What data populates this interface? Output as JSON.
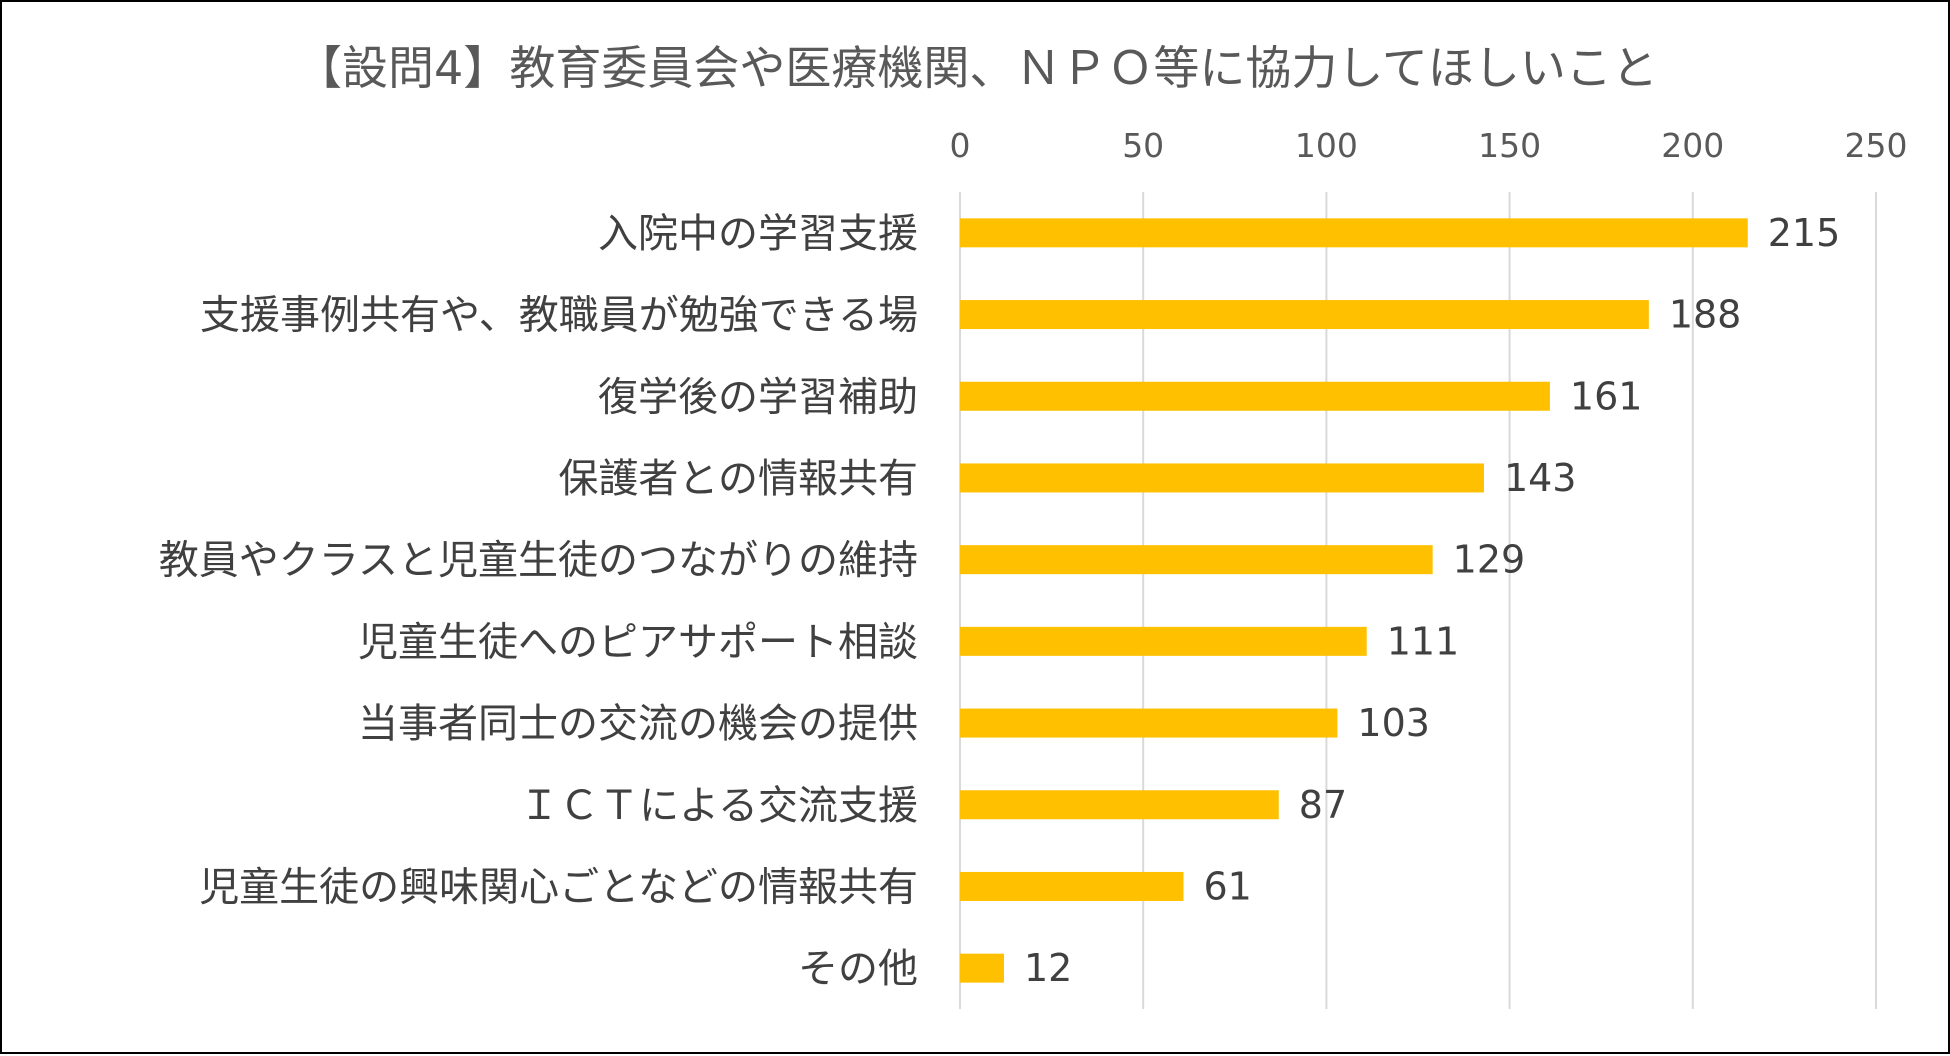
{
  "chart_data": {
    "type": "bar",
    "orientation": "horizontal",
    "title": "【設問4】教育委員会や医療機関、ＮＰＯ等に協力してほしいこと",
    "categories": [
      "入院中の学習支援",
      "支援事例共有や、教職員が勉強できる場",
      "復学後の学習補助",
      "保護者との情報共有",
      "教員やクラスと児童生徒のつながりの維持",
      "児童生徒へのピアサポート相談",
      "当事者同士の交流の機会の提供",
      "ＩＣＴによる交流支援",
      "児童生徒の興味関心ごとなどの情報共有",
      "その他"
    ],
    "values": [
      215,
      188,
      161,
      143,
      129,
      111,
      103,
      87,
      61,
      12
    ],
    "xlim": [
      0,
      250
    ],
    "xticks": [
      0,
      50,
      100,
      150,
      200,
      250
    ],
    "xaxis_position": "top",
    "grid": true,
    "data_labels": true,
    "bar_color": "#FFC000"
  }
}
